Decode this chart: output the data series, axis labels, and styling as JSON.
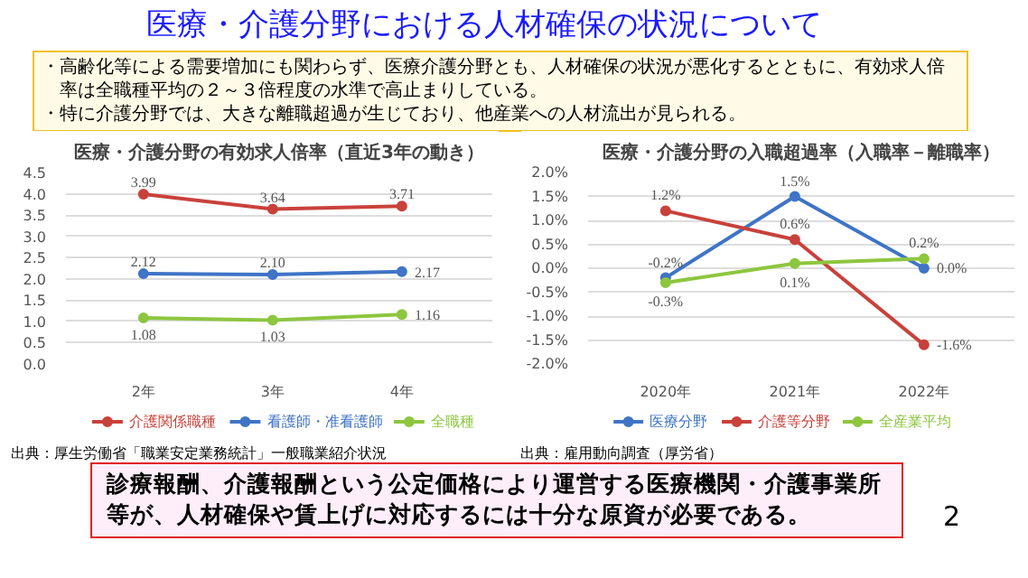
{
  "chart_data": [
    {
      "type": "other",
      "title": "医療・介護分野における人材確保の状況について",
      "annotations": [
        "・高齢化等による需要増加にも関わらず、医療介護分野とも、人材確保の状況が悪化するとともに、有効求人倍率は全職種平均の２～３倍程度の水準で高止まりしている。",
        "・特に介護分野では、大きな離職超過が生じており、他産業への人材流出が見られる。"
      ]
    },
    {
      "type": "line",
      "title": "医療・介護分野の有効求人倍率（直近3年の動き）",
      "categories": [
        "2年",
        "3年",
        "4年"
      ],
      "series": [
        {
          "name": "介護関係職種",
          "color": "#c9413b",
          "values": [
            3.99,
            3.64,
            3.71
          ],
          "value_labels": [
            "3.99",
            "3.64",
            "3.71"
          ]
        },
        {
          "name": "看護師・准看護師",
          "color": "#3f74c6",
          "values": [
            2.12,
            2.1,
            2.17
          ],
          "value_labels": [
            "2.12",
            "2.10",
            "2.17"
          ]
        },
        {
          "name": "全職種",
          "color": "#8dc63f",
          "values": [
            1.08,
            1.03,
            1.16
          ],
          "value_labels": [
            "1.08",
            "1.03",
            "1.16"
          ]
        }
      ],
      "ylim": [
        0,
        4.5
      ],
      "yticks": [
        {
          "value": 0,
          "label": "0.0"
        },
        0.5,
        {
          "value": 1,
          "label": "1.0"
        },
        1.5,
        {
          "value": 2,
          "label": "2.0"
        },
        2.5,
        {
          "value": 3,
          "label": "3.0"
        },
        3.5,
        {
          "value": 4,
          "label": "4.0"
        },
        4.5
      ],
      "grid": "y",
      "legend": "bottom",
      "marker": "circle",
      "annotations": [
        "出典：厚生労働省「職業安定業務統計」一般職業紹介状況"
      ]
    },
    {
      "type": "line",
      "title": "医療・介護分野の入職超過率（入職率－離職率）",
      "categories": [
        "2020年",
        "2021年",
        "2022年"
      ],
      "series": [
        {
          "name": "医療分野",
          "color": "#3f74c6",
          "values": [
            -0.2,
            1.5,
            0.0
          ],
          "value_labels": [
            "-0.2%",
            "1.5%",
            "0.0%"
          ]
        },
        {
          "name": "介護等分野",
          "color": "#c9413b",
          "values": [
            1.2,
            0.6,
            -1.6
          ],
          "value_labels": [
            "1.2%",
            "0.6%",
            "-1.6%"
          ]
        },
        {
          "name": "全産業平均",
          "color": "#8dc63f",
          "values": [
            -0.3,
            0.1,
            0.2
          ],
          "value_labels": [
            "-0.3%",
            "0.1%",
            "0.2%"
          ]
        }
      ],
      "ylim": [
        -2,
        2
      ],
      "yticks": [
        {
          "value": -2,
          "label": "-2.0%"
        },
        {
          "value": -1.5,
          "label": "-1.5%"
        },
        {
          "value": -1,
          "label": "-1.0%"
        },
        {
          "value": -0.5,
          "label": "-0.5%"
        },
        {
          "value": 0,
          "label": "0.0%"
        },
        {
          "value": 0.5,
          "label": "0.5%"
        },
        {
          "value": 1,
          "label": "1.0%"
        },
        {
          "value": 1.5,
          "label": "1.5%"
        },
        {
          "value": 2,
          "label": "2.0%"
        }
      ],
      "grid": "y",
      "legend": "bottom",
      "marker": "circle",
      "annotations": [
        "出典：雇用動向調査（厚労省）"
      ]
    },
    {
      "type": "other",
      "annotations": [
        "診療報酬、介護報酬という公定価格により運営する医療機関・介護事業所等が、人材確保や賃上げに対応するには十分な原資が必要である。",
        "2"
      ]
    }
  ]
}
